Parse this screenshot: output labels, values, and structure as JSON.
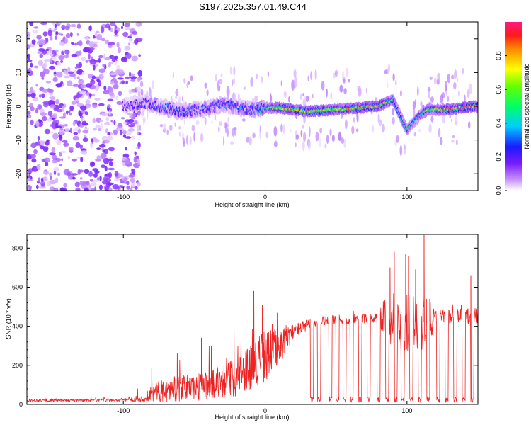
{
  "title": "S197.2025.357.01.49.C44",
  "chart_data": [
    {
      "type": "heatmap",
      "xlabel": "Height of straight line (km)",
      "ylabel": "Frequency (Hz)",
      "xlim": [
        -168,
        150
      ],
      "ylim": [
        -25,
        25
      ],
      "xticks": [
        "-100",
        "0",
        "100"
      ],
      "xtick_values": [
        -100,
        0,
        100
      ],
      "yticks": [
        "-20",
        "-10",
        "0",
        "10",
        "20"
      ],
      "ytick_values": [
        -20,
        -10,
        0,
        10,
        20
      ],
      "colorbar": {
        "label": "Normalized spectral amplitude",
        "range": [
          0,
          1
        ],
        "ticks": [
          "0.0",
          "0.2",
          "0.4",
          "0.6",
          "0.8"
        ],
        "tick_values": [
          0.0,
          0.2,
          0.4,
          0.6,
          0.8
        ]
      },
      "ridge": [
        {
          "x": -100,
          "f": 0.0,
          "amp": 0.15
        },
        {
          "x": -85,
          "f": 1.0,
          "amp": 0.25
        },
        {
          "x": -75,
          "f": 0.0,
          "amp": 0.3
        },
        {
          "x": -60,
          "f": -1.5,
          "amp": 0.3
        },
        {
          "x": -45,
          "f": -1.0,
          "amp": 0.25
        },
        {
          "x": -30,
          "f": 0.5,
          "amp": 0.3
        },
        {
          "x": -10,
          "f": -1.0,
          "amp": 0.3
        },
        {
          "x": 0,
          "f": -0.5,
          "amp": 0.45
        },
        {
          "x": 10,
          "f": -0.5,
          "amp": 0.75
        },
        {
          "x": 30,
          "f": -1.5,
          "amp": 0.8
        },
        {
          "x": 50,
          "f": -1.0,
          "amp": 0.7
        },
        {
          "x": 65,
          "f": -0.5,
          "amp": 0.8
        },
        {
          "x": 80,
          "f": 0.0,
          "amp": 0.85
        },
        {
          "x": 90,
          "f": 2.0,
          "amp": 0.5
        },
        {
          "x": 100,
          "f": -7.0,
          "amp": 0.45
        },
        {
          "x": 108,
          "f": -3.0,
          "amp": 0.4
        },
        {
          "x": 115,
          "f": -1.0,
          "amp": 0.6
        },
        {
          "x": 130,
          "f": -1.0,
          "amp": 0.8
        },
        {
          "x": 148,
          "f": 0.0,
          "amp": 0.85
        }
      ]
    },
    {
      "type": "line",
      "xlabel": "Height of straight line (km)",
      "ylabel": "SNR (10 * v/v)",
      "xlim": [
        -168,
        150
      ],
      "ylim": [
        0,
        870
      ],
      "xticks": [
        "-100",
        "0",
        "100"
      ],
      "xtick_values": [
        -100,
        0,
        100
      ],
      "yticks": [
        "0",
        "200",
        "400",
        "600",
        "800"
      ],
      "ytick_values": [
        0,
        200,
        400,
        600,
        800
      ],
      "series": [
        {
          "name": "SNR",
          "color": "#ee2222",
          "envelope": [
            {
              "x": -168,
              "base": 20,
              "spread": 12
            },
            {
              "x": -100,
              "base": 22,
              "spread": 12
            },
            {
              "x": -85,
              "base": 30,
              "spread": 25
            },
            {
              "x": -80,
              "base": 60,
              "spread": 80
            },
            {
              "x": -60,
              "base": 80,
              "spread": 110
            },
            {
              "x": -40,
              "base": 100,
              "spread": 130
            },
            {
              "x": -20,
              "base": 150,
              "spread": 180
            },
            {
              "x": 0,
              "base": 250,
              "spread": 220
            },
            {
              "x": 15,
              "base": 330,
              "spread": 120
            },
            {
              "x": 20,
              "base": 380,
              "spread": 60
            },
            {
              "x": 40,
              "base": 430,
              "spread": 40
            },
            {
              "x": 80,
              "base": 440,
              "spread": 40
            },
            {
              "x": 85,
              "base": 420,
              "spread": 250
            },
            {
              "x": 115,
              "base": 420,
              "spread": 260
            },
            {
              "x": 120,
              "base": 450,
              "spread": 60
            },
            {
              "x": 150,
              "base": 450,
              "spread": 70
            }
          ],
          "drops": [
            33,
            38,
            46,
            51,
            56,
            61,
            67,
            73,
            80,
            86,
            92,
            97,
            103,
            109,
            115,
            122,
            128,
            134,
            140,
            146
          ],
          "spikes": [
            {
              "x": -90,
              "y": 80
            },
            {
              "x": -80,
              "y": 190
            },
            {
              "x": -62,
              "y": 260
            },
            {
              "x": -45,
              "y": 340
            },
            {
              "x": -38,
              "y": 300
            },
            {
              "x": -22,
              "y": 400
            },
            {
              "x": -8,
              "y": 580
            },
            {
              "x": -2,
              "y": 510
            },
            {
              "x": 5,
              "y": 410
            },
            {
              "x": 11,
              "y": 250
            },
            {
              "x": 88,
              "y": 700
            },
            {
              "x": 91,
              "y": 780
            },
            {
              "x": 99,
              "y": 770
            },
            {
              "x": 101,
              "y": 760
            },
            {
              "x": 106,
              "y": 690
            },
            {
              "x": 112,
              "y": 866
            },
            {
              "x": 116,
              "y": 540
            },
            {
              "x": 145,
              "y": 660
            }
          ]
        }
      ]
    }
  ]
}
